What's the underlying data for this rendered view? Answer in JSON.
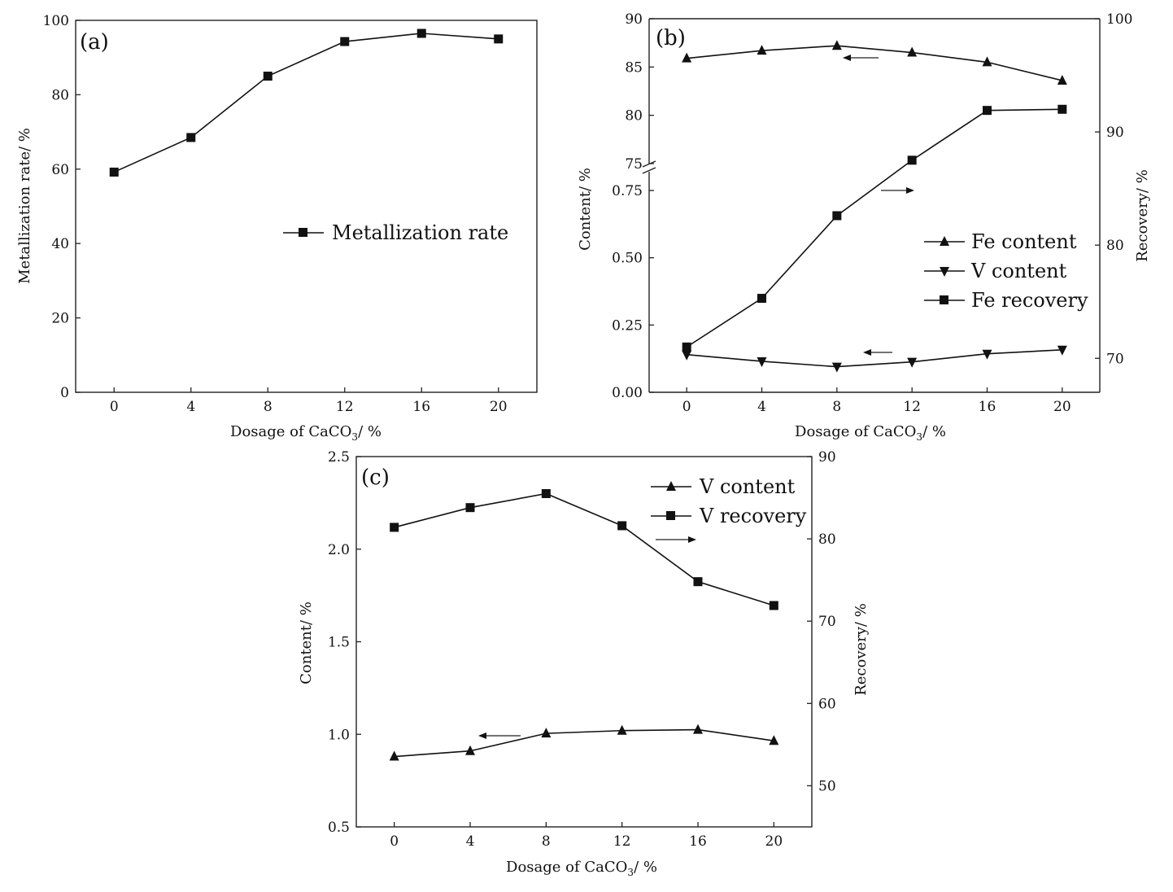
{
  "figure": {
    "xlabel_main": "Dosage of CaCO",
    "xlabel_sub": "3",
    "xlabel_unit": "/ %"
  },
  "chart_data": [
    {
      "panel": "(a)",
      "type": "line",
      "x": [
        0,
        4,
        8,
        12,
        16,
        20
      ],
      "xticks": [
        "0",
        "4",
        "8",
        "12",
        "16",
        "20"
      ],
      "xlim": [
        -2,
        22
      ],
      "ylabel": "Metallization rate/ %",
      "ylim": [
        0,
        100
      ],
      "yticks": [
        "0",
        "20",
        "40",
        "60",
        "80",
        "100"
      ],
      "legend_position": "center-right",
      "series": [
        {
          "name": "Metallization rate",
          "marker": "square",
          "axis": "left",
          "values": [
            59.2,
            68.5,
            85.0,
            94.3,
            96.5,
            95.0
          ]
        }
      ]
    },
    {
      "panel": "(b)",
      "type": "line",
      "x": [
        0,
        4,
        8,
        12,
        16,
        20
      ],
      "xticks": [
        "0",
        "4",
        "8",
        "12",
        "16",
        "20"
      ],
      "xlim": [
        -2,
        22
      ],
      "ylabel": "Content/ %",
      "y2label": "Recovery/ %",
      "left_axis_broken": true,
      "ylim_upper": [
        75,
        90
      ],
      "yticks_upper": [
        "75",
        "80",
        "85",
        "90"
      ],
      "ylim_lower": [
        0,
        0.85
      ],
      "yticks_lower": [
        "0.00",
        "0.25",
        "0.50",
        "0.75"
      ],
      "y2lim": [
        67,
        100
      ],
      "y2ticks": [
        "70",
        "80",
        "90",
        "100"
      ],
      "legend_position": "right",
      "series": [
        {
          "name": "Fe content",
          "marker": "triangle-up",
          "axis": "left",
          "values": [
            85.9,
            86.7,
            87.2,
            86.5,
            85.5,
            83.6
          ]
        },
        {
          "name": "V content",
          "marker": "triangle-down",
          "axis": "left",
          "values": [
            0.14,
            0.115,
            0.095,
            0.113,
            0.143,
            0.158
          ]
        },
        {
          "name": "Fe recovery",
          "marker": "square",
          "axis": "right",
          "values": [
            71.0,
            75.3,
            82.6,
            87.5,
            91.9,
            92.0
          ]
        }
      ]
    },
    {
      "panel": "(c)",
      "type": "line",
      "x": [
        0,
        4,
        8,
        12,
        16,
        20
      ],
      "xticks": [
        "0",
        "4",
        "8",
        "12",
        "16",
        "20"
      ],
      "xlim": [
        -2,
        22
      ],
      "ylabel": "Content/ %",
      "y2label": "Recovery/ %",
      "ylim": [
        0.5,
        2.5
      ],
      "yticks": [
        "0.5",
        "1.0",
        "1.5",
        "2.0",
        "2.5"
      ],
      "y2lim": [
        45,
        90
      ],
      "y2ticks": [
        "50",
        "60",
        "70",
        "80",
        "90"
      ],
      "legend_position": "top-right",
      "series": [
        {
          "name": "V content",
          "marker": "triangle-up",
          "axis": "left",
          "values": [
            0.88,
            0.91,
            1.005,
            1.02,
            1.025,
            0.965
          ]
        },
        {
          "name": "V recovery",
          "marker": "square",
          "axis": "right",
          "values": [
            81.4,
            83.8,
            85.5,
            81.6,
            74.8,
            71.9
          ]
        }
      ]
    }
  ]
}
